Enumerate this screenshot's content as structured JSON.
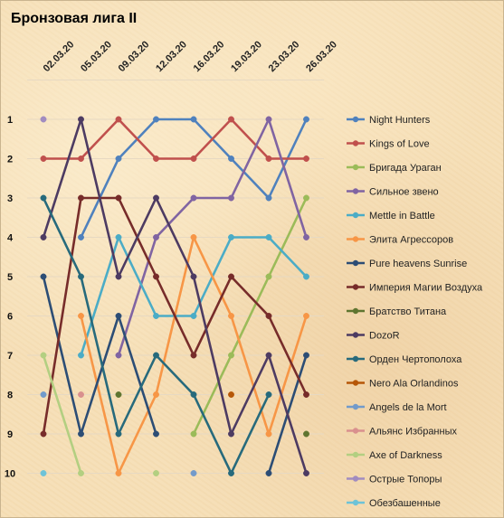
{
  "chart_data": {
    "type": "line",
    "title": "Бронзовая лига II",
    "x": [
      "02.03.20",
      "05.03.20",
      "09.03.20",
      "12.03.20",
      "16.03.20",
      "19.03.20",
      "23.03.20",
      "26.03.20"
    ],
    "y_ticks": [
      1,
      2,
      3,
      4,
      5,
      6,
      7,
      8,
      9,
      10
    ],
    "ylim": [
      10,
      1
    ],
    "y_inverted": true,
    "grid": true,
    "legend_position": "right",
    "series": [
      {
        "name": "Night Hunters",
        "color": "#4f81bd",
        "values": [
          null,
          4,
          2,
          1,
          1,
          2,
          3,
          1
        ]
      },
      {
        "name": "Kings of Love",
        "color": "#c0504d",
        "values": [
          2,
          2,
          1,
          2,
          2,
          1,
          2,
          2
        ]
      },
      {
        "name": "Бригада Ураган",
        "color": "#9bbb59",
        "values": [
          null,
          null,
          null,
          null,
          9,
          7,
          5,
          3
        ]
      },
      {
        "name": "Сильное звено",
        "color": "#8064a2",
        "values": [
          null,
          null,
          7,
          4,
          3,
          3,
          1,
          4
        ]
      },
      {
        "name": "Mettle in Battle",
        "color": "#4bacc6",
        "values": [
          null,
          7,
          4,
          6,
          6,
          4,
          4,
          5
        ]
      },
      {
        "name": "Элита Агрессоров",
        "color": "#f79646",
        "values": [
          null,
          6,
          10,
          8,
          4,
          6,
          9,
          6
        ]
      },
      {
        "name": "Pure heavens Sunrise",
        "color": "#2c4d75",
        "values": [
          5,
          9,
          6,
          9,
          null,
          null,
          10,
          7
        ]
      },
      {
        "name": "Империя Магии Воздуха",
        "color": "#772c2a",
        "values": [
          9,
          3,
          3,
          5,
          7,
          5,
          6,
          8
        ]
      },
      {
        "name": "Братство Титана",
        "color": "#5f7530",
        "values": [
          null,
          null,
          8,
          null,
          null,
          null,
          null,
          9
        ]
      },
      {
        "name": "DozoR",
        "color": "#4d3b62",
        "values": [
          4,
          1,
          5,
          3,
          5,
          9,
          7,
          10
        ]
      },
      {
        "name": "Орден Чертополоха",
        "color": "#276a7c",
        "values": [
          3,
          5,
          9,
          7,
          8,
          10,
          8,
          null
        ]
      },
      {
        "name": "Nero Ala Orlandinos",
        "color": "#b65708",
        "values": [
          null,
          null,
          null,
          null,
          null,
          8,
          null,
          null
        ]
      },
      {
        "name": "Angels de la Mort",
        "color": "#729aca",
        "values": [
          8,
          null,
          null,
          null,
          10,
          null,
          null,
          null
        ]
      },
      {
        "name": "Альянс Избранных",
        "color": "#d9908e",
        "values": [
          null,
          8,
          null,
          null,
          null,
          null,
          null,
          null
        ]
      },
      {
        "name": "Axe of Darkness",
        "color": "#b3cf81",
        "values": [
          7,
          10,
          null,
          10,
          null,
          null,
          null,
          null
        ]
      },
      {
        "name": "Острые Топоры",
        "color": "#a18cc0",
        "values": [
          1,
          null,
          null,
          null,
          null,
          null,
          null,
          null
        ]
      },
      {
        "name": "Обезбашенные",
        "color": "#6dc3d8",
        "values": [
          10,
          null,
          null,
          null,
          null,
          null,
          null,
          null
        ]
      }
    ]
  }
}
